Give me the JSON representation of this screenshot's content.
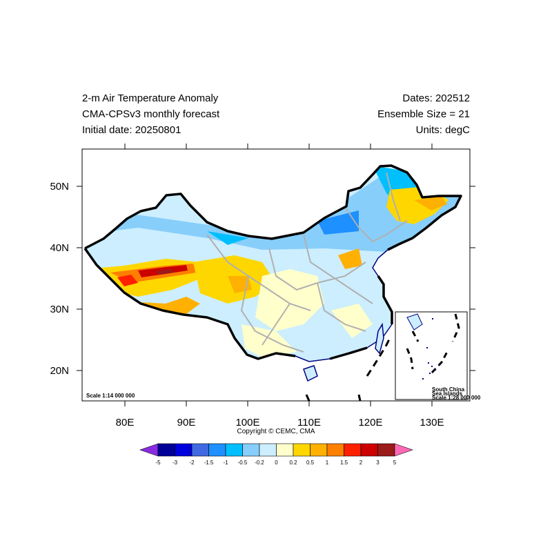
{
  "header": {
    "left": [
      "2-m Air Temperature Anomaly",
      "CMA-CPSv3 monthly forecast",
      "Initial date: 20250801"
    ],
    "right": [
      "Dates: 202512",
      "Ensemble Size = 21",
      "Units: degC"
    ]
  },
  "axes": {
    "x_ticks": [
      "80E",
      "90E",
      "100E",
      "110E",
      "120E",
      "130E"
    ],
    "y_ticks": [
      "50N",
      "40N",
      "30N",
      "20N"
    ]
  },
  "map": {
    "scale_label": "Scale 1:14 000 000",
    "inset_labels": [
      "South China",
      "Sea Islands",
      "Scale 1:28 000 000"
    ]
  },
  "copyright": "Copyright © CEMC, CMA",
  "colorbar": {
    "labels": [
      "-5",
      "-3",
      "-2",
      "-1.5",
      "-1",
      "-0.5",
      "-0.2",
      "0",
      "0.2",
      "0.5",
      "1",
      "1.5",
      "2",
      "3",
      "5"
    ],
    "colors": [
      "#000099",
      "#0000dd",
      "#4169e1",
      "#1e90ff",
      "#00bfff",
      "#87cefa",
      "#cceeff",
      "#ffffcc",
      "#ffd700",
      "#ffb000",
      "#ff7f00",
      "#ff2000",
      "#cc0000",
      "#9b1a1a"
    ],
    "low_color": "#8a2be2",
    "high_color": "#ff69b4"
  },
  "colors": {
    "border": "#000000",
    "provinces": "#b0b0b0",
    "coast": "#000080"
  }
}
